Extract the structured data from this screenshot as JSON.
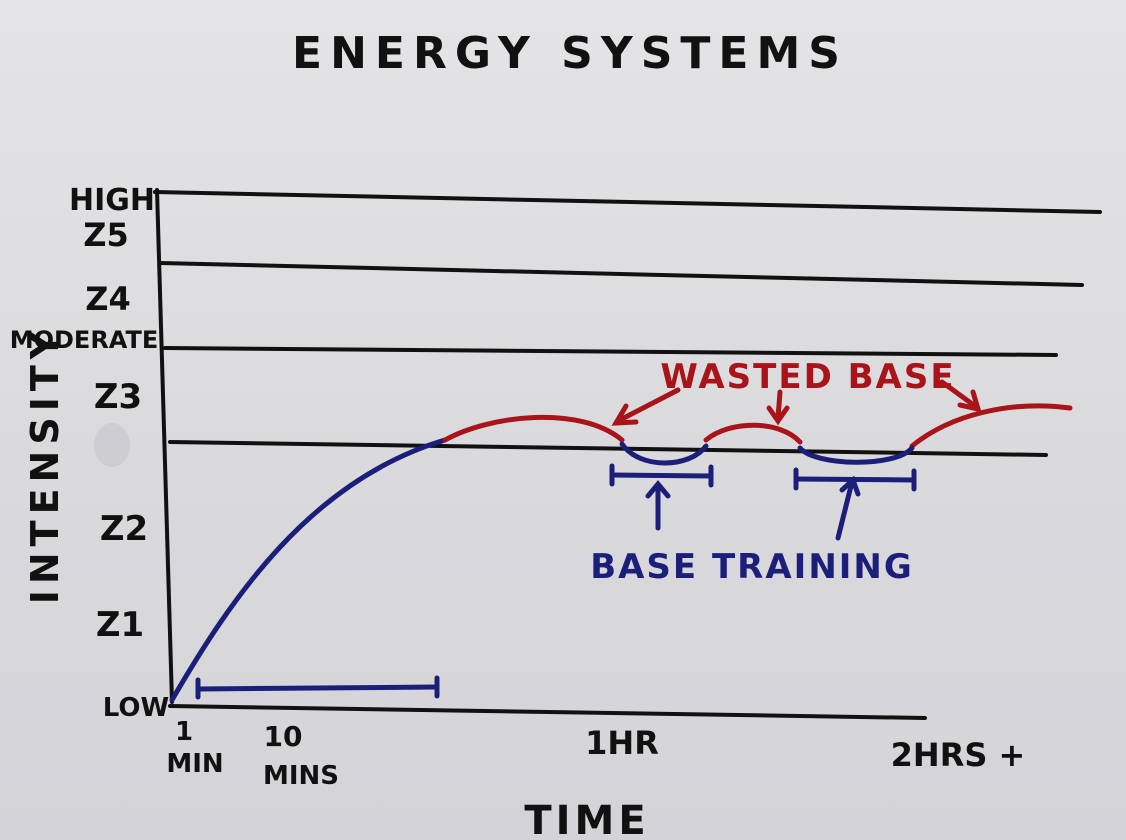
{
  "title": "ENERGY SYSTEMS",
  "y_axis": {
    "label": "INTENSITY",
    "ticks": {
      "high": "HIGH",
      "z5": "Z5",
      "z4": "Z4",
      "moderate": "MODERATE",
      "z3": "Z3",
      "z2": "Z2",
      "z1": "Z1",
      "low": "LOW"
    }
  },
  "x_axis": {
    "label": "TIME",
    "ticks": {
      "t1": "1",
      "t1_unit": "MIN",
      "t10": "10",
      "t10_unit": "MINS",
      "t1hr": "1HR",
      "t2hrs": "2HRS +"
    }
  },
  "annotations": {
    "wasted_base": "WASTED BASE",
    "base_training": "BASE TRAINING"
  },
  "colors": {
    "black": "#111111",
    "red": "#a8141a",
    "blue": "#1b1f7a"
  }
}
